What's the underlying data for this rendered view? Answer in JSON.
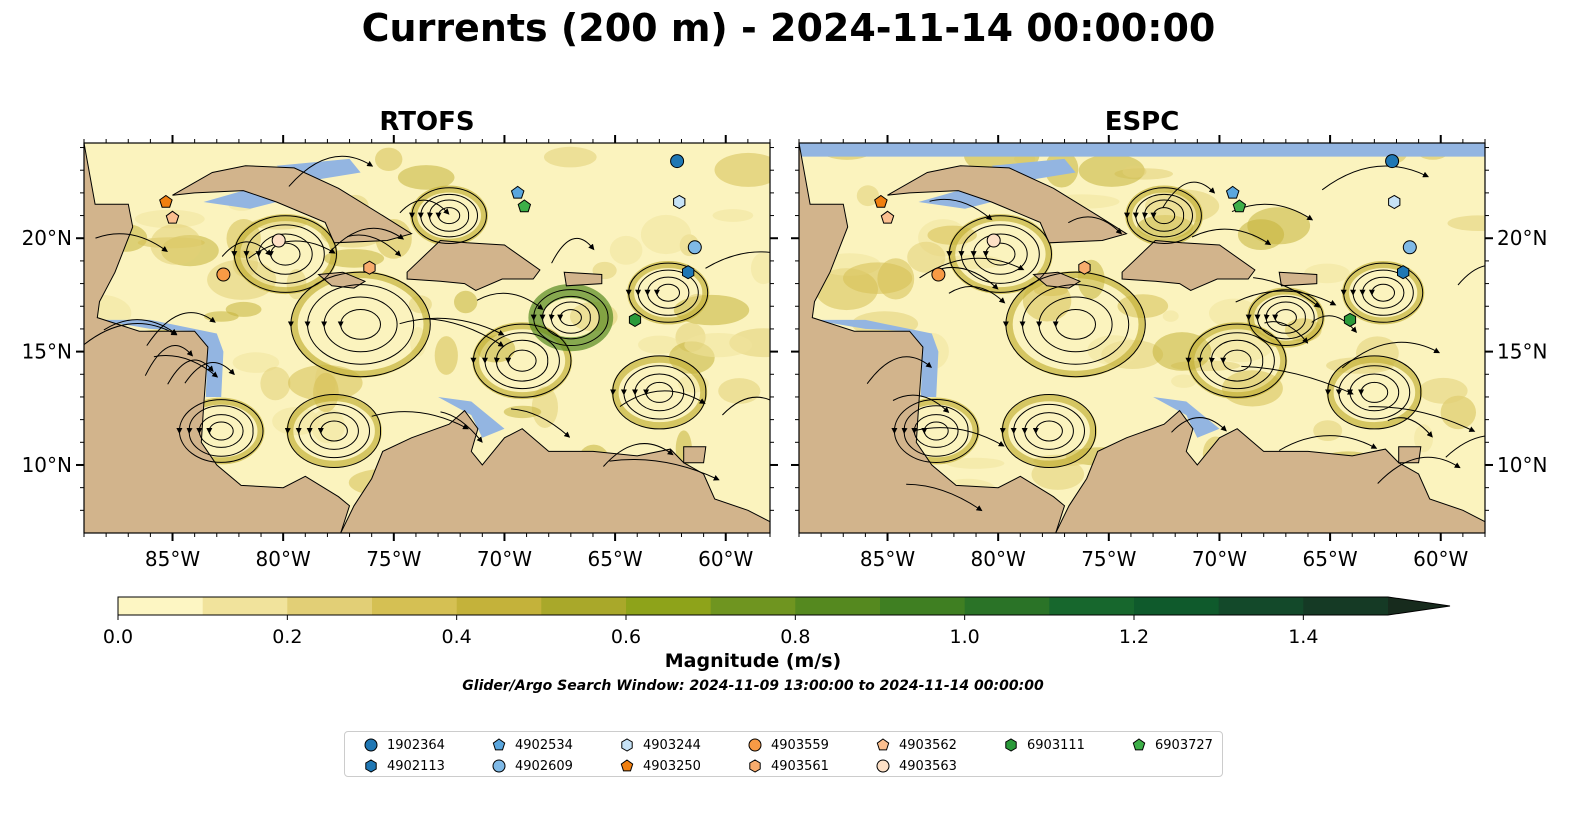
{
  "title": "Currents (200 m) - 2024-11-14 00:00:00",
  "panels": [
    {
      "title": "RTOFS"
    },
    {
      "title": "ESPC"
    }
  ],
  "axes": {
    "lon_ticks": [
      "85°W",
      "80°W",
      "75°W",
      "70°W",
      "65°W",
      "60°W"
    ],
    "lat_ticks": [
      "20°N",
      "15°N",
      "10°N"
    ],
    "lon_range": [
      -89,
      -58
    ],
    "lat_range": [
      7,
      24.2
    ]
  },
  "colorbar": {
    "title": "Magnitude (m/s)",
    "ticks": [
      "0.0",
      "0.2",
      "0.4",
      "0.6",
      "0.8",
      "1.0",
      "1.2",
      "1.4"
    ],
    "range": [
      0,
      1.5
    ],
    "extend": "max",
    "colors": [
      "#fdf6c3",
      "#f1e39c",
      "#e2cf76",
      "#d5c053",
      "#c4b23a",
      "#a9a82a",
      "#8ea31a",
      "#6f9520",
      "#55891f",
      "#3f7f22",
      "#2a7327",
      "#17672d",
      "#0f5a2c",
      "#13492a",
      "#153a25",
      "#172b1d"
    ]
  },
  "search_window": "Glider/Argo Search Window: 2024-11-09 13:00:00 to 2024-11-14 00:00:00",
  "colors": {
    "land": "#d2b48c",
    "ocean": "#93b5e1",
    "low_current": "#fbf3be"
  },
  "floats": [
    {
      "id": "1902364",
      "marker": "circle",
      "color": "#1f77b4",
      "lon": -62.2,
      "lat": 23.4
    },
    {
      "id": "4902113",
      "marker": "hexagon",
      "color": "#1f77b4",
      "lon": -61.7,
      "lat": 18.5
    },
    {
      "id": "4902534",
      "marker": "pentagon",
      "color": "#5aa6de",
      "lon": -69.4,
      "lat": 22.0
    },
    {
      "id": "4902609",
      "marker": "circle",
      "color": "#7fb9e6",
      "lon": -61.4,
      "lat": 19.6
    },
    {
      "id": "4903244",
      "marker": "hexagon",
      "color": "#c6e2f6",
      "lon": -62.1,
      "lat": 21.6
    },
    {
      "id": "4903250",
      "marker": "pentagon",
      "color": "#f07f10",
      "lon": -85.3,
      "lat": 21.6
    },
    {
      "id": "4903559",
      "marker": "circle",
      "color": "#f79a45",
      "lon": -82.7,
      "lat": 18.4
    },
    {
      "id": "4903561",
      "marker": "hexagon",
      "color": "#f8ac6d",
      "lon": -76.1,
      "lat": 18.7
    },
    {
      "id": "4903562",
      "marker": "pentagon",
      "color": "#fbbf8f",
      "lon": -85.0,
      "lat": 20.9
    },
    {
      "id": "4903563",
      "marker": "circle",
      "color": "#fde0c6",
      "lon": -80.2,
      "lat": 19.9
    },
    {
      "id": "6903111",
      "marker": "hexagon",
      "color": "#2a9a3a",
      "lon": -64.1,
      "lat": 16.4
    },
    {
      "id": "6903727",
      "marker": "pentagon",
      "color": "#3daf48",
      "lon": -69.1,
      "lat": 21.4
    }
  ]
}
